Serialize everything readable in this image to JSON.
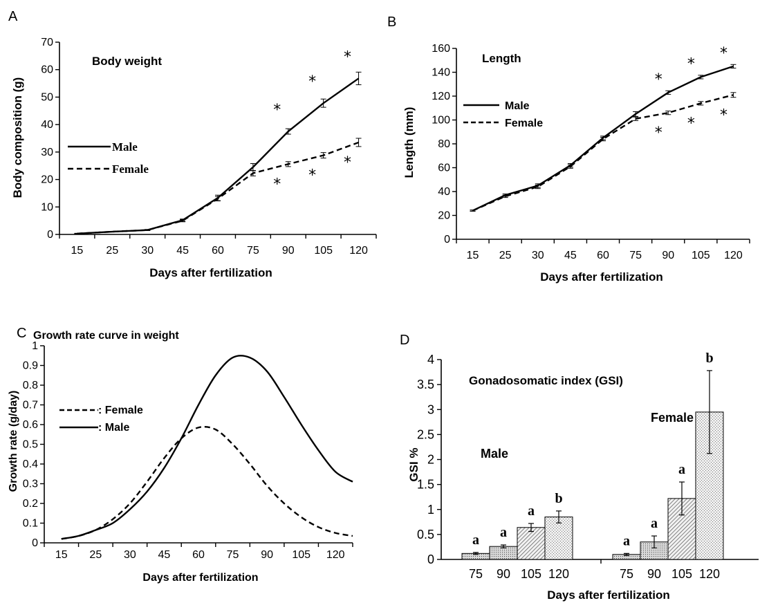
{
  "chart_data": [
    {
      "panel": "A",
      "type": "line",
      "title": "Body weight",
      "xlabel": "Days after fertilization",
      "ylabel": "Body composition (g)",
      "ylim": [
        0,
        70
      ],
      "yticks": [
        0,
        10,
        20,
        30,
        40,
        50,
        60,
        70
      ],
      "categories": [
        "15",
        "25",
        "30",
        "45",
        "60",
        "75",
        "90",
        "105",
        "120"
      ],
      "series": [
        {
          "name": "Male",
          "style": "solid",
          "values": [
            0.3,
            1.0,
            1.6,
            5.2,
            13.3,
            24.5,
            37.5,
            47.8,
            56.8
          ],
          "errors": [
            0.1,
            0.1,
            0.2,
            0.4,
            1.0,
            1.3,
            1.0,
            1.5,
            2.3
          ]
        },
        {
          "name": "Female",
          "style": "dashed",
          "values": [
            0.3,
            1.0,
            1.6,
            5.0,
            13.0,
            22.3,
            25.6,
            28.8,
            33.5
          ],
          "errors": [
            0.1,
            0.1,
            0.2,
            0.4,
            0.8,
            1.0,
            0.9,
            1.0,
            1.5
          ]
        }
      ],
      "marks": {
        "male_star": "*",
        "female_star": "*"
      },
      "male_star_categories": [
        "90",
        "105",
        "120"
      ],
      "female_star_categories": [
        "90",
        "105",
        "120"
      ]
    },
    {
      "panel": "B",
      "type": "line",
      "title": "Length",
      "xlabel": "Days after fertilization",
      "ylabel": "Length (mm)",
      "ylim": [
        0,
        160
      ],
      "yticks": [
        0,
        20,
        40,
        60,
        80,
        100,
        120,
        140,
        160
      ],
      "categories": [
        "15",
        "25",
        "30",
        "45",
        "60",
        "75",
        "90",
        "105",
        "120"
      ],
      "series": [
        {
          "name": "Male",
          "style": "solid",
          "values": [
            24,
            37,
            45,
            62,
            85,
            105,
            123,
            136,
            145
          ],
          "errors": [
            0.5,
            1,
            1.5,
            1.5,
            1.5,
            2,
            1.5,
            1.5,
            1.5
          ]
        },
        {
          "name": "Female",
          "style": "dashed",
          "values": [
            24,
            36,
            44,
            61,
            84,
            101,
            106,
            114,
            121
          ],
          "errors": [
            0.5,
            1,
            1.5,
            1.5,
            1.5,
            1.5,
            1.5,
            1.5,
            2
          ]
        }
      ],
      "marks": {
        "male_star": "*",
        "female_star": "*"
      },
      "male_star_categories": [
        "90",
        "105",
        "120"
      ],
      "female_star_categories": [
        "90",
        "105",
        "120"
      ]
    },
    {
      "panel": "C",
      "type": "line",
      "title": "Growth rate curve in weight",
      "xlabel": "Days after fertilization",
      "ylabel": "Growth rate (g/day)",
      "ylim": [
        0,
        1
      ],
      "yticks": [
        0,
        0.1,
        0.2,
        0.3,
        0.4,
        0.5,
        0.6,
        0.7,
        0.8,
        0.9,
        1
      ],
      "categories": [
        "15",
        "25",
        "30",
        "45",
        "60",
        "75",
        "90",
        "105",
        "120"
      ],
      "series": [
        {
          "name": ": Female",
          "style": "dashed",
          "x": [
            0,
            0.5,
            1,
            1.5,
            2,
            2.5,
            3,
            3.5,
            4,
            4.5,
            5,
            5.5,
            6,
            6.5,
            7,
            7.5,
            8,
            8.5
          ],
          "values": [
            0.02,
            0.035,
            0.065,
            0.12,
            0.2,
            0.31,
            0.43,
            0.53,
            0.585,
            0.575,
            0.5,
            0.4,
            0.29,
            0.2,
            0.13,
            0.08,
            0.05,
            0.035
          ]
        },
        {
          "name": ": Male",
          "style": "solid",
          "x": [
            0,
            0.5,
            1,
            1.5,
            2,
            2.5,
            3,
            3.5,
            4,
            4.5,
            5,
            5.5,
            6,
            6.5,
            7,
            7.5,
            8,
            8.5
          ],
          "values": [
            0.02,
            0.035,
            0.065,
            0.1,
            0.17,
            0.26,
            0.38,
            0.53,
            0.7,
            0.85,
            0.94,
            0.94,
            0.87,
            0.74,
            0.6,
            0.47,
            0.36,
            0.31
          ]
        }
      ]
    },
    {
      "panel": "D",
      "type": "bar",
      "title": "Gonadosomatic index (GSI)",
      "xlabel": "Days after fertilization",
      "ylabel": "GSI  %",
      "ylim": [
        0,
        4
      ],
      "yticks": [
        0,
        0.5,
        1,
        1.5,
        2,
        2.5,
        3,
        3.5,
        4
      ],
      "groups": [
        {
          "name": "Male",
          "categories": [
            "75",
            "90",
            "105",
            "120"
          ],
          "values": [
            0.12,
            0.26,
            0.64,
            0.85
          ],
          "errors": [
            0.02,
            0.03,
            0.08,
            0.12
          ],
          "letters": [
            "a",
            "a",
            "a",
            "b"
          ]
        },
        {
          "name": "Female",
          "categories": [
            "75",
            "90",
            "105",
            "120"
          ],
          "values": [
            0.1,
            0.35,
            1.22,
            2.95
          ],
          "errors": [
            0.02,
            0.12,
            0.33,
            0.83
          ],
          "letters": [
            "a",
            "a",
            "a",
            "b"
          ]
        }
      ]
    }
  ],
  "labels": {
    "a": "A",
    "b": "B",
    "c": "C",
    "d": "D"
  },
  "colors": {
    "ink": "#000000",
    "bar_fill": "#e8e8e8"
  }
}
